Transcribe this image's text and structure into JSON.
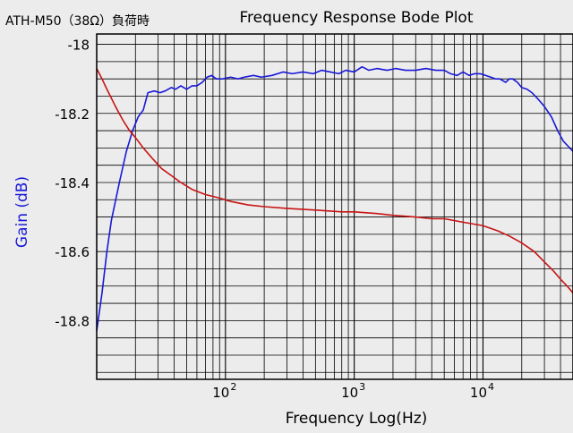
{
  "chart_data": {
    "type": "line",
    "corner_label": "ATH-M50（38Ω）負荷時",
    "title": "Frequency Response Bode Plot",
    "xlabel": "Frequency Log(Hz)",
    "ylabel": "Gain (dB)",
    "x_scale": "log",
    "xlim": [
      10,
      50000
    ],
    "ylim": [
      -18.97,
      -17.97
    ],
    "grid": true,
    "y_ticks": [
      -18.0,
      -18.2,
      -18.4,
      -18.6,
      -18.8
    ],
    "y_tick_labels": [
      "-18",
      "-18.2",
      "-18.4",
      "-18.6",
      "-18.8"
    ],
    "x_tick_labels": [
      {
        "value": 100,
        "base": "10",
        "exp": "2"
      },
      {
        "value": 1000,
        "base": "10",
        "exp": "3"
      },
      {
        "value": 10000,
        "base": "10",
        "exp": "4"
      }
    ],
    "colors": {
      "background": "#ececec",
      "grid": "#000000",
      "series_blue": "#1818d8",
      "series_red": "#c81414",
      "ylabel": "#1818d8"
    },
    "series": [
      {
        "color": "#1818d8",
        "points": [
          [
            10,
            -18.83
          ],
          [
            11,
            -18.72
          ],
          [
            12,
            -18.6
          ],
          [
            13,
            -18.51
          ],
          [
            15,
            -18.4
          ],
          [
            17,
            -18.31
          ],
          [
            19,
            -18.25
          ],
          [
            21,
            -18.21
          ],
          [
            23,
            -18.19
          ],
          [
            25,
            -18.14
          ],
          [
            28,
            -18.135
          ],
          [
            31,
            -18.14
          ],
          [
            34,
            -18.135
          ],
          [
            38,
            -18.125
          ],
          [
            41,
            -18.13
          ],
          [
            45,
            -18.12
          ],
          [
            50,
            -18.13
          ],
          [
            55,
            -18.12
          ],
          [
            60,
            -18.12
          ],
          [
            66,
            -18.11
          ],
          [
            72,
            -18.095
          ],
          [
            78,
            -18.09
          ],
          [
            85,
            -18.1
          ],
          [
            95,
            -18.1
          ],
          [
            110,
            -18.095
          ],
          [
            125,
            -18.1
          ],
          [
            140,
            -18.095
          ],
          [
            165,
            -18.09
          ],
          [
            190,
            -18.095
          ],
          [
            230,
            -18.09
          ],
          [
            280,
            -18.08
          ],
          [
            330,
            -18.085
          ],
          [
            400,
            -18.08
          ],
          [
            480,
            -18.085
          ],
          [
            560,
            -18.075
          ],
          [
            650,
            -18.08
          ],
          [
            760,
            -18.085
          ],
          [
            860,
            -18.075
          ],
          [
            1000,
            -18.08
          ],
          [
            1150,
            -18.065
          ],
          [
            1300,
            -18.075
          ],
          [
            1500,
            -18.07
          ],
          [
            1800,
            -18.075
          ],
          [
            2100,
            -18.07
          ],
          [
            2500,
            -18.075
          ],
          [
            3000,
            -18.075
          ],
          [
            3600,
            -18.07
          ],
          [
            4300,
            -18.075
          ],
          [
            5000,
            -18.075
          ],
          [
            5600,
            -18.085
          ],
          [
            6300,
            -18.09
          ],
          [
            7000,
            -18.08
          ],
          [
            7800,
            -18.09
          ],
          [
            8600,
            -18.085
          ],
          [
            9500,
            -18.085
          ],
          [
            10500,
            -18.09
          ],
          [
            11500,
            -18.095
          ],
          [
            12500,
            -18.1
          ],
          [
            13500,
            -18.1
          ],
          [
            15000,
            -18.11
          ],
          [
            16000,
            -18.1
          ],
          [
            17000,
            -18.1
          ],
          [
            18500,
            -18.11
          ],
          [
            20000,
            -18.125
          ],
          [
            22000,
            -18.13
          ],
          [
            24000,
            -18.14
          ],
          [
            27000,
            -18.16
          ],
          [
            30000,
            -18.18
          ],
          [
            34000,
            -18.21
          ],
          [
            38000,
            -18.25
          ],
          [
            42000,
            -18.28
          ],
          [
            50000,
            -18.31
          ]
        ]
      },
      {
        "color": "#c81414",
        "points": [
          [
            10,
            -18.07
          ],
          [
            11,
            -18.1
          ],
          [
            12,
            -18.13
          ],
          [
            14,
            -18.18
          ],
          [
            16,
            -18.22
          ],
          [
            18,
            -18.25
          ],
          [
            20,
            -18.27
          ],
          [
            23,
            -18.3
          ],
          [
            27,
            -18.33
          ],
          [
            32,
            -18.36
          ],
          [
            38,
            -18.38
          ],
          [
            45,
            -18.4
          ],
          [
            55,
            -18.42
          ],
          [
            70,
            -18.435
          ],
          [
            90,
            -18.445
          ],
          [
            110,
            -18.455
          ],
          [
            150,
            -18.465
          ],
          [
            200,
            -18.47
          ],
          [
            300,
            -18.475
          ],
          [
            500,
            -18.48
          ],
          [
            800,
            -18.485
          ],
          [
            1000,
            -18.485
          ],
          [
            1500,
            -18.49
          ],
          [
            2000,
            -18.495
          ],
          [
            3000,
            -18.5
          ],
          [
            4000,
            -18.505
          ],
          [
            5000,
            -18.505
          ],
          [
            7000,
            -18.515
          ],
          [
            10000,
            -18.525
          ],
          [
            13000,
            -18.54
          ],
          [
            16000,
            -18.555
          ],
          [
            20000,
            -18.575
          ],
          [
            25000,
            -18.6
          ],
          [
            30000,
            -18.63
          ],
          [
            35000,
            -18.655
          ],
          [
            40000,
            -18.68
          ],
          [
            45000,
            -18.7
          ],
          [
            50000,
            -18.72
          ]
        ]
      }
    ]
  }
}
